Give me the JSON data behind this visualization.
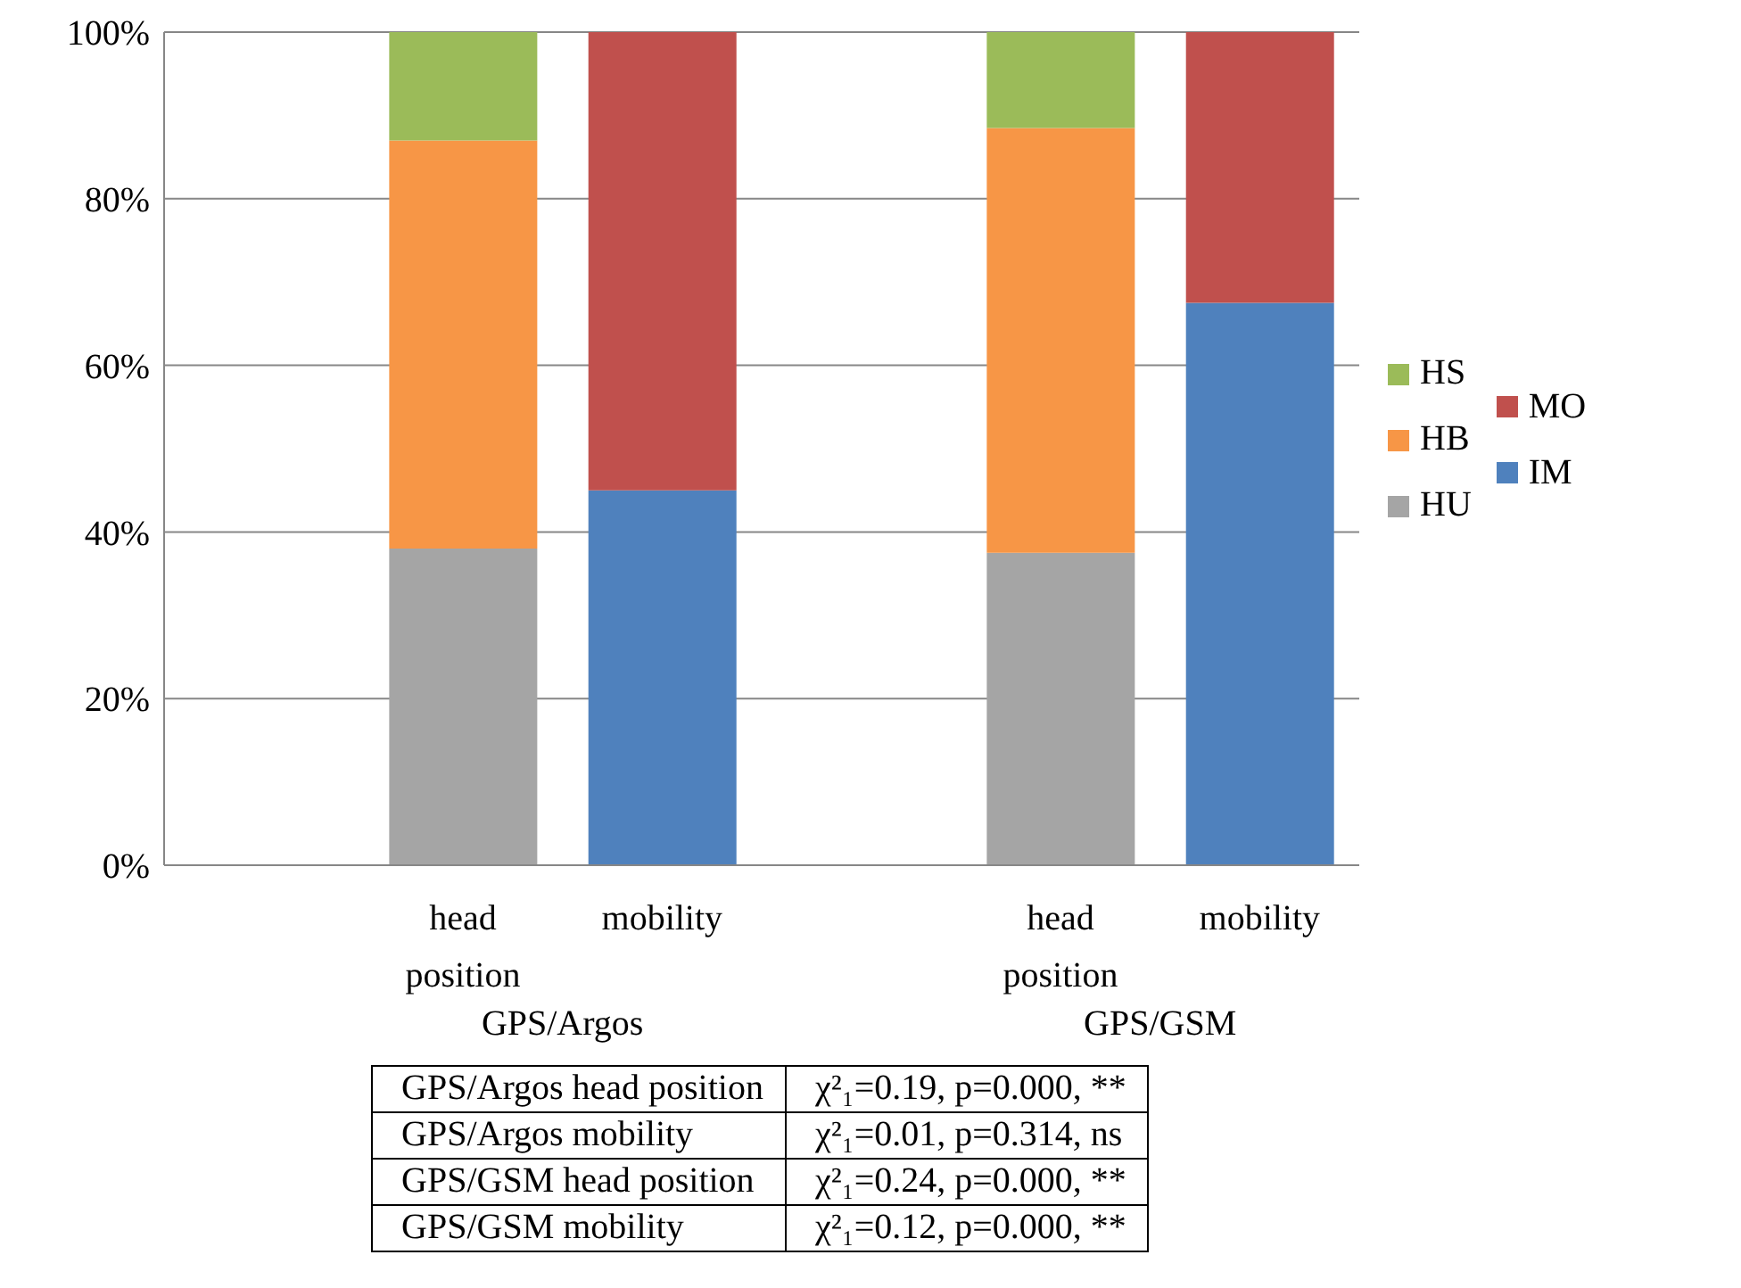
{
  "chart_data": {
    "type": "bar",
    "stacked": true,
    "categories": [
      null,
      "head position",
      "mobility",
      null,
      "head position",
      "mobility"
    ],
    "series": [
      {
        "name": "HU",
        "color": "#a5a5a5",
        "values": [
          null,
          38,
          null,
          null,
          37.5,
          null
        ]
      },
      {
        "name": "HB",
        "color": "#f79646",
        "values": [
          null,
          49,
          null,
          null,
          51,
          null
        ]
      },
      {
        "name": "HS",
        "color": "#9bbb59",
        "values": [
          null,
          13,
          null,
          null,
          11.5,
          null
        ]
      },
      {
        "name": "IM",
        "color": "#4f81bd",
        "values": [
          null,
          null,
          45,
          null,
          null,
          67.5
        ]
      },
      {
        "name": "MO",
        "color": "#c0504d",
        "values": [
          null,
          null,
          55,
          null,
          null,
          32.5
        ]
      }
    ],
    "ylim": [
      0,
      100
    ],
    "yticks": [
      {
        "value": 0,
        "label": "0%"
      },
      {
        "value": 20,
        "label": "20%"
      },
      {
        "value": 40,
        "label": "40%"
      },
      {
        "value": 60,
        "label": "60%"
      },
      {
        "value": 80,
        "label": "80%"
      },
      {
        "value": 100,
        "label": "100%"
      }
    ],
    "grid": "y",
    "legend": "right",
    "annotations": [
      "GPS/Argos",
      "GPS/GSM",
      "GPS/Argos head position",
      "χ²₁=0.19, p=0.000, **",
      "GPS/Argos mobility",
      "χ²₁=0.01, p=0.314, ns",
      "GPS/GSM head position",
      "χ²₁=0.24, p=0.000, **",
      "GPS/GSM mobility",
      "χ²₁=0.12, p=0.000, **"
    ]
  }
}
